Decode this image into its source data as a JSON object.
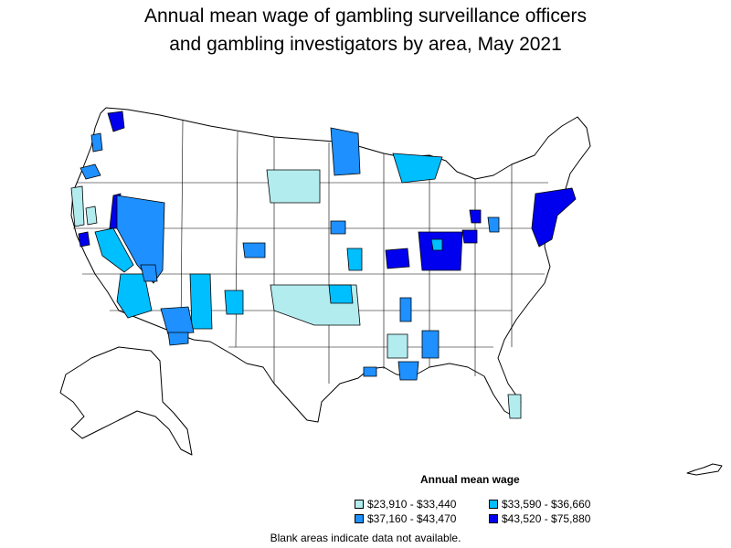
{
  "title_line1": "Annual mean wage of gambling surveillance officers",
  "title_line2": "and gambling investigators by area, May 2021",
  "legend": {
    "title": "Annual mean wage",
    "items": [
      {
        "label": "$23,910 - $33,440",
        "color": "#b3ecef"
      },
      {
        "label": "$33,590 - $36,660",
        "color": "#00bfff"
      },
      {
        "label": "$37,160 - $43,470",
        "color": "#1e90ff"
      },
      {
        "label": "$43,520 - $75,880",
        "color": "#0000ee"
      }
    ]
  },
  "footnote": "Blank areas indicate data not available."
}
